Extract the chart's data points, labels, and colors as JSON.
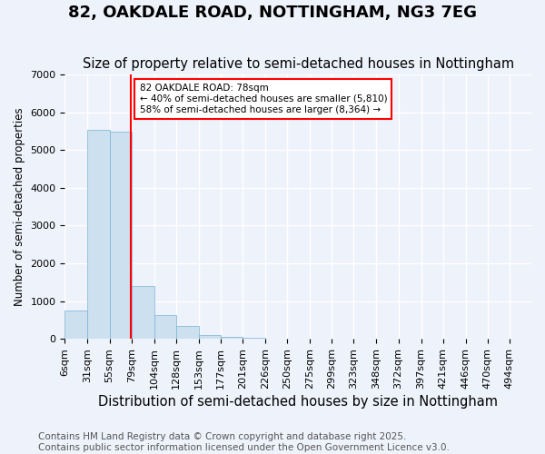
{
  "title1": "82, OAKDALE ROAD, NOTTINGHAM, NG3 7EG",
  "title2": "Size of property relative to semi-detached houses in Nottingham",
  "xlabel": "Distribution of semi-detached houses by size in Nottingham",
  "ylabel": "Number of semi-detached properties",
  "bar_labels": [
    "6sqm",
    "31sqm",
    "55sqm",
    "79sqm",
    "104sqm",
    "128sqm",
    "153sqm",
    "177sqm",
    "201sqm",
    "226sqm",
    "250sqm",
    "275sqm",
    "299sqm",
    "323sqm",
    "348sqm",
    "372sqm",
    "397sqm",
    "421sqm",
    "446sqm",
    "470sqm",
    "494sqm"
  ],
  "bar_edges": [
    6,
    31,
    55,
    79,
    104,
    128,
    153,
    177,
    201,
    226,
    250,
    275,
    299,
    323,
    348,
    372,
    397,
    421,
    446,
    470,
    494
  ],
  "bar_values": [
    750,
    5530,
    5490,
    1390,
    620,
    350,
    110,
    60,
    20,
    10,
    5,
    3,
    2,
    1,
    1,
    0,
    0,
    0,
    0,
    0
  ],
  "bar_color": "#cce0f0",
  "bar_edge_color": "#7ab3d4",
  "property_line_x": 78,
  "property_line_color": "red",
  "annotation_text": "82 OAKDALE ROAD: 78sqm\n← 40% of semi-detached houses are smaller (5,810)\n58% of semi-detached houses are larger (8,364) →",
  "annotation_box_color": "white",
  "annotation_box_edge_color": "red",
  "ylim": [
    0,
    7000
  ],
  "yticks": [
    0,
    1000,
    2000,
    3000,
    4000,
    5000,
    6000,
    7000
  ],
  "footer_text": "Contains HM Land Registry data © Crown copyright and database right 2025.\nContains public sector information licensed under the Open Government Licence v3.0.",
  "background_color": "#eef2fb",
  "grid_color": "#ffffff",
  "title1_fontsize": 13,
  "title2_fontsize": 10.5,
  "xlabel_fontsize": 10.5,
  "ylabel_fontsize": 8.5,
  "tick_fontsize": 8,
  "annotation_fontsize": 7.5,
  "footer_fontsize": 7.5
}
